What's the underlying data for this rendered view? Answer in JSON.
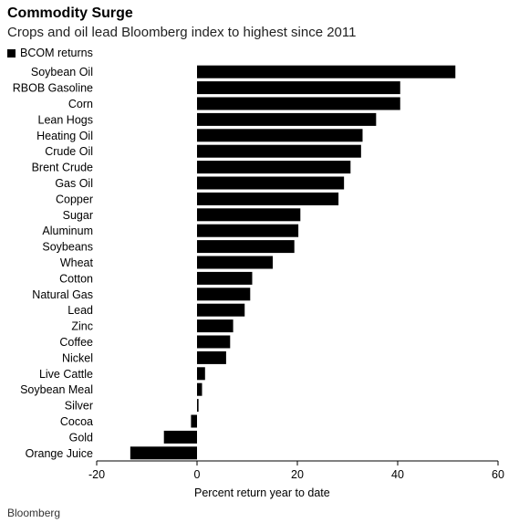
{
  "chart_data": {
    "type": "bar",
    "orientation": "horizontal",
    "title": "Commodity Surge",
    "subtitle": "Crops and oil lead Bloomberg index to highest since 2011",
    "legend": [
      "BCOM returns"
    ],
    "legend_position": "top-left",
    "xlabel": "Percent return year to date",
    "xlim": [
      -20,
      60
    ],
    "xticks": [
      -20,
      0,
      20,
      40,
      60
    ],
    "grid": false,
    "categories": [
      "Soybean Oil",
      "RBOB Gasoline",
      "Corn",
      "Lean Hogs",
      "Heating Oil",
      "Crude Oil",
      "Brent Crude",
      "Gas Oil",
      "Copper",
      "Sugar",
      "Aluminum",
      "Soybeans",
      "Wheat",
      "Cotton",
      "Natural Gas",
      "Lead",
      "Zinc",
      "Coffee",
      "Nickel",
      "Live Cattle",
      "Soybean Meal",
      "Silver",
      "Cocoa",
      "Gold",
      "Orange Juice"
    ],
    "series": [
      {
        "name": "BCOM returns",
        "values": [
          51.5,
          40.5,
          40.5,
          35.7,
          33.0,
          32.7,
          30.6,
          29.3,
          28.2,
          20.6,
          20.2,
          19.4,
          15.1,
          11.0,
          10.6,
          9.5,
          7.2,
          6.6,
          5.8,
          1.6,
          1.0,
          0.3,
          -1.2,
          -6.6,
          -13.3
        ]
      }
    ],
    "color": "#000000"
  },
  "source": "Bloomberg"
}
